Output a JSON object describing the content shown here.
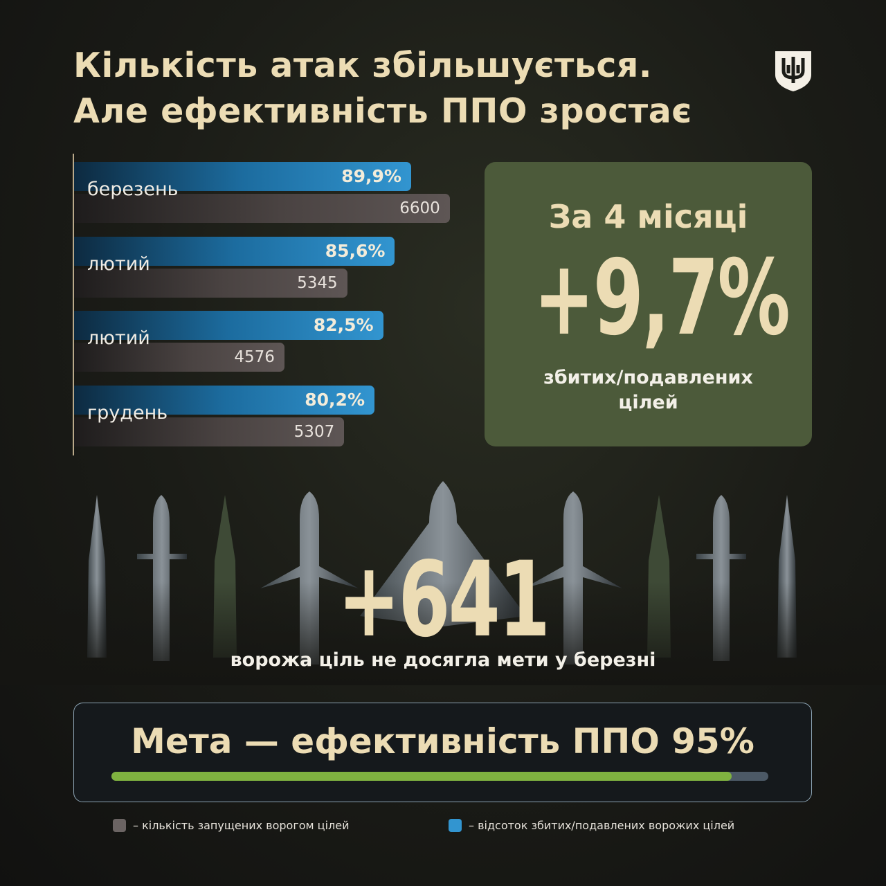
{
  "title_line1": "Кількість атак збільшується.",
  "title_line2": "Але ефективність ППО зростає",
  "emblem": "ukraine-trident-emblem-icon",
  "chart_data": {
    "type": "bar",
    "categories": [
      "березень",
      "лютий",
      "лютий",
      "грудень"
    ],
    "series": [
      {
        "name": "відсоток збитих/подавлених ворожих цілей",
        "values": [
          89.9,
          85.6,
          82.5,
          80.2
        ],
        "labels": [
          "89,9%",
          "85,6%",
          "82,5%",
          "80,2%"
        ],
        "color": "#3295d0"
      },
      {
        "name": "кількість запущених ворогом цілей",
        "values": [
          6600,
          5345,
          4576,
          5307
        ],
        "labels": [
          "6600",
          "5345",
          "4576",
          "5307"
        ],
        "color": "#5e5655"
      }
    ]
  },
  "panel": {
    "line1": "За 4 місяці",
    "value": "+9,7%",
    "line2": "збитих/подавлених",
    "line3": "цілей",
    "color": "#4c5a3a"
  },
  "highlight": {
    "value": "+641",
    "caption": "ворожа ціль не досягла мети у березні"
  },
  "goal": {
    "text": "Мета — ефективність ППО 95%",
    "progress_fraction": 0.944,
    "fill_color": "#7fb240"
  },
  "legend": [
    {
      "label": "– кількість запущених ворогом цілей",
      "color": "#6b6463"
    },
    {
      "label": "– відсоток збитих/подавлених ворожих цілей",
      "color": "#3295d0"
    }
  ]
}
